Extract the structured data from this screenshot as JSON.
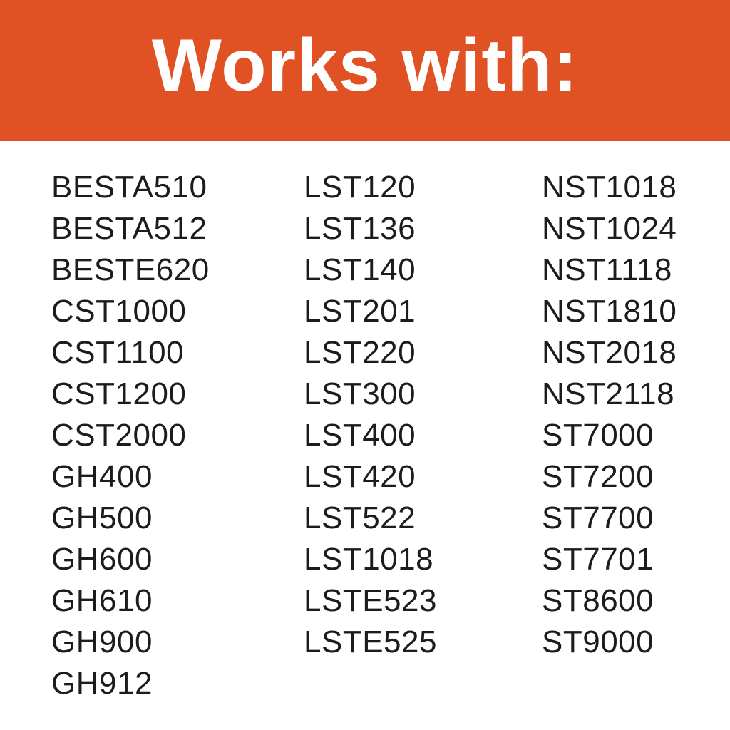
{
  "header": {
    "title": "Works with:",
    "background_color": "#E05224"
  },
  "columns": [
    [
      "BESTA510",
      "BESTA512",
      "BESTE620",
      "CST1000",
      "CST1100",
      "CST1200",
      "CST2000",
      "GH400",
      "GH500",
      "GH600",
      "GH610",
      "GH900",
      "GH912"
    ],
    [
      "LST120",
      "LST136",
      "LST140",
      "LST201",
      "LST220",
      "LST300",
      "LST400",
      "LST420",
      "LST522",
      "LST1018",
      "LSTE523",
      "LSTE525"
    ],
    [
      "NST1018",
      "NST1024",
      "NST1118",
      "NST1810",
      "NST2018",
      "NST2118",
      "ST7000",
      "ST7200",
      "ST7700",
      "ST7701",
      "ST8600",
      "ST9000"
    ]
  ]
}
